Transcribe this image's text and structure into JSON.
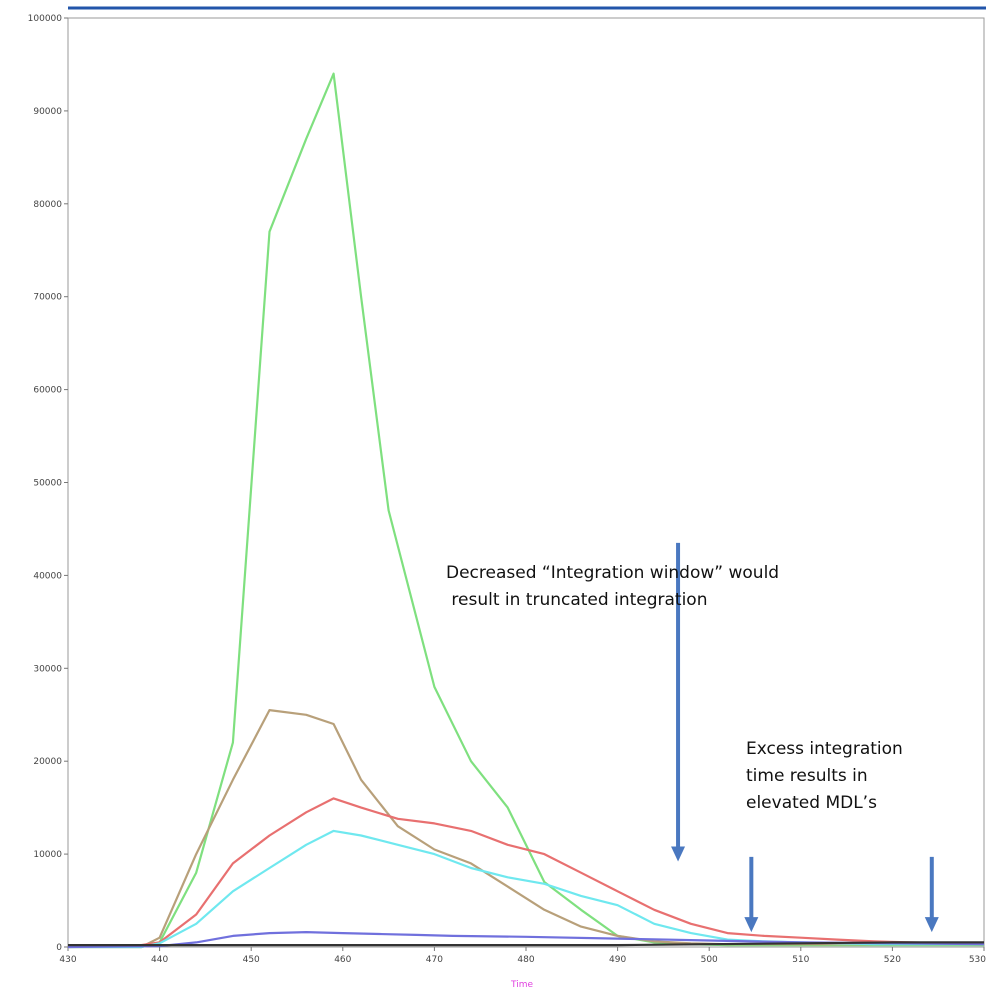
{
  "chart_data": {
    "type": "line",
    "title": "",
    "xlabel": "Time",
    "ylabel": "",
    "xlim": [
      430,
      530
    ],
    "ylim": [
      0,
      100000
    ],
    "x_ticks": [
      "430",
      "440",
      "450",
      "460",
      "470",
      "480",
      "490",
      "500",
      "510",
      "520",
      "530"
    ],
    "y_ticks": [
      "0",
      "10000",
      "20000",
      "30000",
      "40000",
      "50000",
      "60000",
      "70000",
      "80000",
      "90000",
      "100000"
    ],
    "grid": false,
    "legend": "none",
    "series": [
      {
        "color": "#7fe07f",
        "x": [
          430,
          438,
          440,
          444,
          448,
          452,
          456,
          459,
          462,
          465,
          470,
          474,
          478,
          482,
          486,
          490,
          494,
          498,
          502,
          506,
          510,
          514,
          518,
          522,
          526,
          530
        ],
        "y": [
          0,
          0,
          500,
          8000,
          22000,
          77000,
          87000,
          94000,
          70000,
          47000,
          28000,
          20000,
          15000,
          7000,
          4000,
          1200,
          500,
          300,
          200,
          200,
          200,
          200,
          200,
          200,
          200,
          200
        ]
      },
      {
        "color": "#b8a07a",
        "x": [
          430,
          438,
          440,
          444,
          448,
          452,
          456,
          459,
          462,
          466,
          470,
          474,
          478,
          482,
          486,
          490,
          494,
          498,
          502,
          506,
          510,
          514,
          518,
          522,
          526,
          530
        ],
        "y": [
          0,
          0,
          1000,
          10000,
          18000,
          25500,
          25000,
          24000,
          18000,
          13000,
          10500,
          9000,
          6500,
          4000,
          2200,
          1200,
          600,
          400,
          300,
          300,
          300,
          300,
          300,
          300,
          300,
          300
        ]
      },
      {
        "color": "#e87070",
        "x": [
          430,
          438,
          440,
          444,
          448,
          452,
          456,
          459,
          462,
          466,
          470,
          474,
          478,
          482,
          486,
          490,
          494,
          498,
          502,
          506,
          510,
          514,
          518,
          522,
          526,
          530
        ],
        "y": [
          0,
          200,
          500,
          3500,
          9000,
          12000,
          14500,
          16000,
          15000,
          13800,
          13300,
          12500,
          11000,
          10000,
          8000,
          6000,
          4000,
          2500,
          1500,
          1200,
          1000,
          800,
          600,
          500,
          400,
          300
        ]
      },
      {
        "color": "#6fe8ef",
        "x": [
          430,
          438,
          440,
          444,
          448,
          452,
          456,
          459,
          462,
          466,
          470,
          474,
          478,
          482,
          486,
          490,
          494,
          498,
          502,
          506,
          510,
          514,
          518,
          522,
          526,
          530
        ],
        "y": [
          0,
          0,
          400,
          2500,
          6000,
          8500,
          11000,
          12500,
          12000,
          11000,
          10000,
          8500,
          7500,
          6800,
          5500,
          4500,
          2500,
          1500,
          800,
          600,
          500,
          400,
          300,
          300,
          300,
          300
        ]
      },
      {
        "color": "#7070dd",
        "x": [
          430,
          440,
          444,
          448,
          452,
          456,
          460,
          464,
          468,
          472,
          480,
          490,
          500,
          510,
          520,
          530
        ],
        "y": [
          0,
          100,
          500,
          1200,
          1500,
          1600,
          1500,
          1400,
          1300,
          1200,
          1100,
          900,
          700,
          500,
          400,
          300
        ]
      },
      {
        "color": "#333333",
        "x": [
          430,
          460,
          490,
          500,
          510,
          520,
          530
        ],
        "y": [
          200,
          200,
          200,
          300,
          400,
          500,
          500
        ]
      }
    ],
    "annotations": [
      {
        "text": "Decreased “Integration window” would\n result in truncated integration"
      },
      {
        "text": "Excess integration\ntime results in\nelevated MDL’s"
      }
    ],
    "arrows": [
      {
        "x": 496.6,
        "y_from": 43500,
        "y_to": 9200
      },
      {
        "x": 504.6,
        "y_from": 9700,
        "y_to": 1600
      },
      {
        "x": 524.3,
        "y_from": 9700,
        "y_to": 1600
      }
    ]
  }
}
